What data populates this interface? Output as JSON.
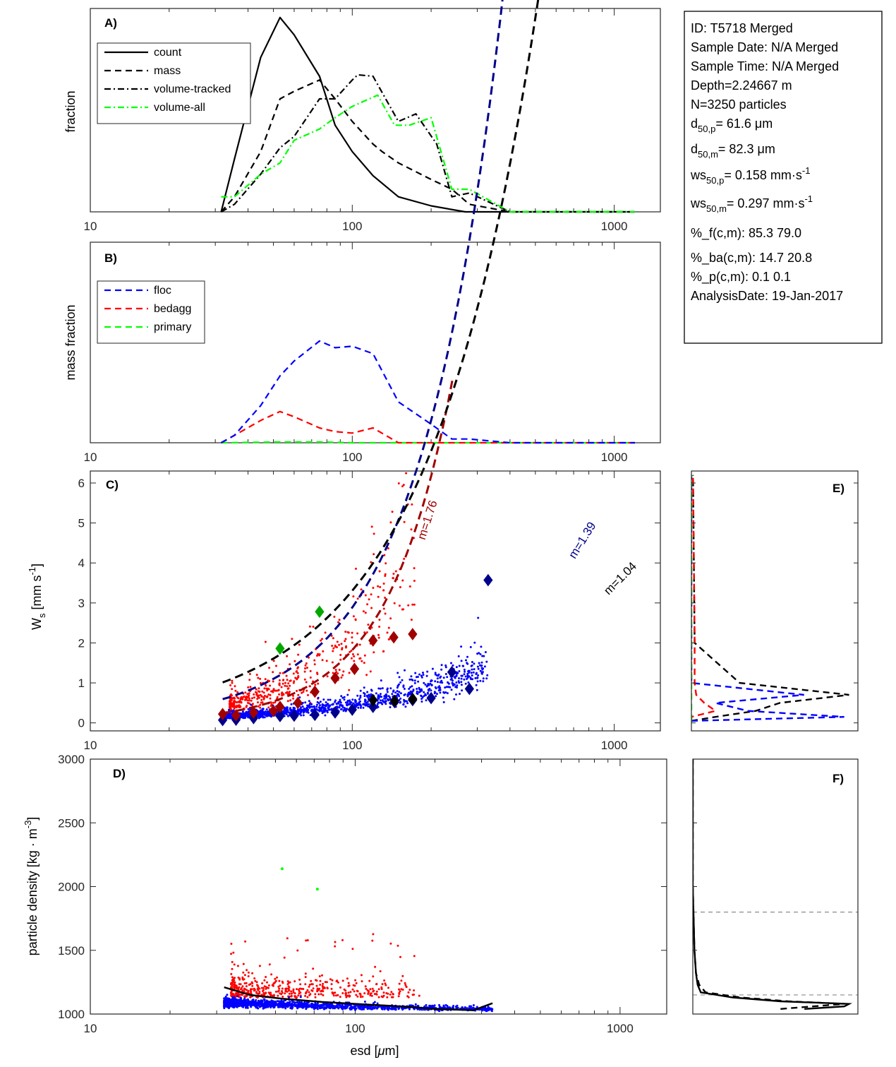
{
  "info_box": {
    "lines": [
      {
        "main": "ID: T5718 Merged"
      },
      {
        "main": "Sample Date: N/A Merged"
      },
      {
        "main": "Sample Time: N/A Merged"
      },
      {
        "main": "Depth=2.24667 m"
      },
      {
        "main": "N=3250 particles"
      },
      {
        "main": "d",
        "sub": "50,p",
        "rest": "=  61.6 μm"
      },
      {
        "main": "d",
        "sub": "50,m",
        "rest": "=  82.3 μm"
      },
      {
        "main": "ws",
        "sub": "50,p",
        "rest": "= 0.158 mm·s",
        "sup": "-1"
      },
      {
        "main": "ws",
        "sub": "50,m",
        "rest": "= 0.297 mm·s",
        "sup": "-1"
      },
      {
        "main": "%_f(c,m): 85.3 79.0"
      },
      {
        "main": "%_ba(c,m): 14.7 20.8"
      },
      {
        "main": "%_p(c,m): 0.1 0.1"
      },
      {
        "main": "AnalysisDate: 19-Jan-2017"
      }
    ]
  },
  "chart_data": [
    {
      "id": "A",
      "type": "line",
      "panel_label": "A)",
      "xscale": "log",
      "xlim": [
        10,
        1500
      ],
      "ylim": [
        0,
        0.27
      ],
      "xticks": [
        10,
        100,
        1000
      ],
      "xtick_labels": [
        "10",
        "100",
        "1000"
      ],
      "ylabel": "fraction",
      "legend_position": "top-left",
      "series": [
        {
          "name": "count",
          "style": "solid",
          "color": "#000000",
          "x": [
            31.6,
            35.5,
            44.7,
            53,
            60,
            75,
            86,
            100,
            120,
            150,
            200,
            270,
            400,
            1200
          ],
          "y": [
            0.0,
            0.07,
            0.205,
            0.258,
            0.235,
            0.18,
            0.115,
            0.08,
            0.048,
            0.02,
            0.008,
            0.0,
            0.0,
            0.0
          ]
        },
        {
          "name": "mass",
          "style": "dashed",
          "color": "#000000",
          "x": [
            31.6,
            35.5,
            44.7,
            53,
            60,
            75,
            86,
            100,
            120,
            130,
            150,
            200,
            240,
            280,
            400,
            1200
          ],
          "y": [
            0.0,
            0.02,
            0.08,
            0.15,
            0.16,
            0.175,
            0.15,
            0.12,
            0.09,
            0.08,
            0.065,
            0.043,
            0.03,
            0.01,
            0.0,
            0.0
          ]
        },
        {
          "name": "volume-tracked",
          "style": "dashdot",
          "color": "#000000",
          "x": [
            31.6,
            35.5,
            44.7,
            53,
            60,
            75,
            86,
            100,
            105,
            120,
            150,
            175,
            210,
            240,
            280,
            400,
            1200
          ],
          "y": [
            0.0,
            0.01,
            0.05,
            0.085,
            0.1,
            0.15,
            0.15,
            0.175,
            0.182,
            0.18,
            0.12,
            0.13,
            0.09,
            0.02,
            0.025,
            0.0,
            0.0
          ]
        },
        {
          "name": "volume-all",
          "style": "dashdot",
          "color": "#00ff00",
          "x": [
            31.6,
            35.5,
            44.7,
            53,
            60,
            75,
            86,
            100,
            125,
            145,
            165,
            200,
            240,
            280,
            400,
            1200
          ],
          "y": [
            0.02,
            0.02,
            0.05,
            0.065,
            0.095,
            0.11,
            0.125,
            0.14,
            0.155,
            0.115,
            0.115,
            0.125,
            0.03,
            0.03,
            0.0,
            0.0
          ]
        }
      ]
    },
    {
      "id": "B",
      "type": "line",
      "panel_label": "B)",
      "xscale": "log",
      "xlim": [
        10,
        1500
      ],
      "ylim": [
        0,
        0.27
      ],
      "xticks": [
        10,
        100,
        1000
      ],
      "xtick_labels": [
        "10",
        "100",
        "1000"
      ],
      "ylabel": "mass fraction",
      "legend_position": "top-left",
      "series": [
        {
          "name": "floc",
          "style": "dashed",
          "color": "#0000ff",
          "x": [
            31.6,
            35.5,
            44.7,
            53,
            60,
            75,
            86,
            100,
            120,
            150,
            200,
            240,
            280,
            400,
            1200
          ],
          "y": [
            0.0,
            0.01,
            0.05,
            0.09,
            0.11,
            0.137,
            0.128,
            0.13,
            0.12,
            0.055,
            0.025,
            0.005,
            0.005,
            0.0,
            0.0
          ]
        },
        {
          "name": "bedagg",
          "style": "dashed",
          "color": "#ff0000",
          "x": [
            31.6,
            35.5,
            44.7,
            53,
            60,
            75,
            86,
            100,
            120,
            150,
            200,
            400,
            1200
          ],
          "y": [
            0.0,
            0.01,
            0.03,
            0.042,
            0.035,
            0.02,
            0.015,
            0.013,
            0.02,
            0.0,
            0.0,
            0.0,
            0.0
          ]
        },
        {
          "name": "primary",
          "style": "dashed",
          "color": "#00ff00",
          "x": [
            31.6,
            53,
            75,
            100,
            200,
            400,
            1200
          ],
          "y": [
            0.0,
            0.001,
            0.001,
            0.0,
            0.0,
            0.0,
            0.0
          ]
        }
      ]
    },
    {
      "id": "C",
      "type": "scatter",
      "panel_label": "C)",
      "xscale": "log",
      "xlim": [
        10,
        1500
      ],
      "ylim": [
        -0.2,
        6.3
      ],
      "xticks": [
        10,
        100,
        1000
      ],
      "xtick_labels": [
        "10",
        "100",
        "1000"
      ],
      "yticks": [
        0,
        1,
        2,
        3,
        4,
        5,
        6
      ],
      "ylabel": {
        "main": "W",
        "sub": "s",
        "rest": " [mm s",
        "sup": "-1",
        "end": "]"
      },
      "scatter_groups": [
        {
          "name": "floc",
          "color": "#0000ff",
          "n": 1400,
          "xrange": [
            32,
            330
          ],
          "ymed": 0.2
        },
        {
          "name": "bedagg",
          "color": "#ff0000",
          "n": 480,
          "xrange": [
            34,
            175
          ],
          "ymed": 0.6
        }
      ],
      "bin_markers": [
        {
          "group": "floc",
          "color": "#00008b",
          "x": [
            32,
            36,
            42,
            53,
            60,
            72,
            86,
            100,
            120,
            145,
            170,
            200,
            240,
            280,
            330
          ],
          "y": [
            0.07,
            0.08,
            0.12,
            0.17,
            0.18,
            0.2,
            0.26,
            0.33,
            0.4,
            0.52,
            0.57,
            0.62,
            1.27,
            0.85,
            3.57
          ]
        },
        {
          "group": "bedagg",
          "color": "#a00000",
          "x": [
            32,
            36,
            42,
            50,
            53,
            62,
            72,
            86,
            102,
            120,
            144,
            170
          ],
          "y": [
            0.22,
            0.19,
            0.26,
            0.3,
            0.4,
            0.5,
            0.78,
            1.12,
            1.35,
            2.06,
            2.14,
            2.22
          ]
        },
        {
          "group": "primary",
          "color": "#00a800",
          "x": [
            53,
            75
          ],
          "y": [
            1.86,
            2.78
          ]
        },
        {
          "group": "all",
          "color": "#000000",
          "x": [
            120,
            145,
            170
          ],
          "y": [
            0.57,
            0.55,
            0.6
          ]
        }
      ],
      "fits": [
        {
          "label": "m=1.76",
          "color": "#a00000",
          "k": 0.00055,
          "m": 1.76,
          "x_end": 250
        },
        {
          "label": "m=1.39",
          "color": "#00008b",
          "k": 0.00479,
          "m": 1.39,
          "x_end": 1000
        },
        {
          "label": "m=1.04",
          "color": "#000000",
          "k": 0.0275,
          "m": 1.04,
          "x_end": 1200
        }
      ]
    },
    {
      "id": "D",
      "type": "scatter",
      "panel_label": "D)",
      "xscale": "log",
      "xlim": [
        10,
        1500
      ],
      "ylim": [
        1000,
        3000
      ],
      "xticks": [
        10,
        100,
        1000
      ],
      "xtick_labels": [
        "10",
        "100",
        "1000"
      ],
      "yticks": [
        1000,
        1500,
        2000,
        2500,
        3000
      ],
      "xlabel": {
        "main": "esd [",
        "mu": "μ",
        "rest": "m]"
      },
      "ylabel": {
        "main": "particle density [kg · m",
        "sup": "-3",
        "end": "]"
      },
      "scatter_groups": [
        {
          "name": "floc",
          "color": "#0000ff",
          "n": 1400,
          "xrange": [
            32,
            330
          ],
          "ymed": 1080
        },
        {
          "name": "bedagg",
          "color": "#ff0000",
          "n": 480,
          "xrange": [
            34,
            175
          ],
          "ymed": 1240
        }
      ],
      "primary_points": {
        "color": "#00ff00",
        "x": [
          53,
          72
        ],
        "y": [
          2140,
          1980
        ]
      },
      "median_line": {
        "color": "#000000",
        "x": [
          32,
          40,
          53,
          75,
          100,
          150,
          200,
          280,
          330
        ],
        "y": [
          1210,
          1150,
          1120,
          1095,
          1080,
          1060,
          1040,
          1030,
          1085
        ]
      }
    },
    {
      "id": "E",
      "type": "line",
      "panel_label": "E)",
      "ylim": [
        -0.2,
        6.3
      ],
      "series": [
        {
          "name": "all",
          "style": "dashed",
          "color": "#000000",
          "v": [
            0.0,
            0.15,
            0.4,
            0.55,
            0.98,
            0.3,
            0.02,
            0.01
          ]
        },
        {
          "name": "floc",
          "style": "dashed",
          "color": "#0000ff",
          "v": [
            0.0,
            0.95,
            0.35,
            0.15,
            0.7,
            0.0,
            0.0,
            0.0
          ]
        },
        {
          "name": "bedagg",
          "style": "dashed",
          "color": "#ff0000",
          "v": [
            0.0,
            0.0,
            0.15,
            0.08,
            0.03,
            0.02,
            0.02,
            0.01
          ]
        },
        {
          "name": "primary",
          "style": "dashed",
          "color": "#00ff00",
          "v": [
            0.0,
            0.0,
            0.0,
            0.0,
            0.0,
            0.0,
            0.0,
            0.0
          ]
        }
      ],
      "y_levels": [
        0.05,
        0.15,
        0.3,
        0.5,
        0.7,
        1.0,
        2.0,
        6.2
      ]
    },
    {
      "id": "F",
      "type": "line",
      "panel_label": "F)",
      "ylim": [
        1000,
        3000
      ],
      "hlines": [
        1150,
        1800
      ],
      "series": [
        {
          "name": "all",
          "style": "solid",
          "color": "#000000",
          "y": [
            1040,
            1060,
            1080,
            1100,
            1130,
            1170,
            1230,
            1320,
            1500,
            2000,
            3000
          ],
          "v": [
            0.7,
            0.95,
            0.98,
            0.55,
            0.25,
            0.05,
            0.03,
            0.02,
            0.01,
            0.0,
            0.0
          ]
        },
        {
          "name": "mass",
          "style": "dashed",
          "color": "#000000",
          "y": [
            1040,
            1060,
            1080,
            1100,
            1130,
            1170,
            1230,
            1320,
            1500,
            2000,
            3000
          ],
          "v": [
            0.55,
            0.75,
            0.95,
            0.6,
            0.3,
            0.08,
            0.04,
            0.02,
            0.01,
            0.0,
            0.0
          ]
        }
      ]
    }
  ]
}
